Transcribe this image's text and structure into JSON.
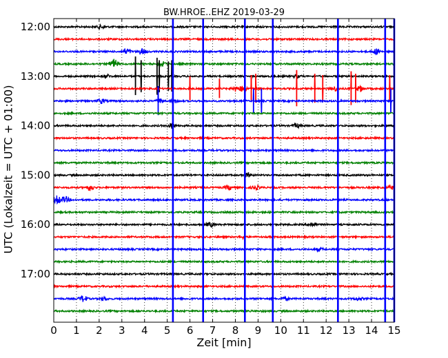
{
  "chart_data": {
    "type": "line",
    "title": "BW.HROE..EHZ 2019-03-29",
    "xlabel": "Zeit  [min]",
    "ylabel": "UTC (Lokalzeit = UTC + 01:00)",
    "xlim": [
      0,
      15
    ],
    "x_ticks": [
      "0",
      "1",
      "2",
      "3",
      "4",
      "5",
      "6",
      "7",
      "8",
      "9",
      "10",
      "11",
      "12",
      "13",
      "14",
      "15"
    ],
    "y_ticks": [
      {
        "label": "12:00",
        "row": 0
      },
      {
        "label": "13:00",
        "row": 4
      },
      {
        "label": "14:00",
        "row": 8
      },
      {
        "label": "15:00",
        "row": 12
      },
      {
        "label": "16:00",
        "row": 16
      },
      {
        "label": "17:00",
        "row": 20
      }
    ],
    "row_minutes": 15,
    "start_time": "12:00",
    "trace_colors": [
      "#000000",
      "#ff0000",
      "#0000ff",
      "#008000"
    ],
    "grid": true,
    "event_markers_min": [
      5.25,
      6.58,
      8.42,
      9.65,
      12.52,
      14.6,
      15.0
    ],
    "marker_color": "#0000ff",
    "traces": [
      {
        "time": "12:00",
        "color": "#000000",
        "bursts": [
          [
            2.1,
            0.6
          ]
        ]
      },
      {
        "time": "12:15",
        "color": "#ff0000",
        "bursts": []
      },
      {
        "time": "12:30",
        "color": "#0000ff",
        "bursts": [
          [
            3.2,
            1.2
          ],
          [
            3.9,
            1.0
          ],
          [
            14.2,
            1.0
          ]
        ]
      },
      {
        "time": "12:45",
        "color": "#008000",
        "bursts": [
          [
            2.65,
            1.8
          ],
          [
            4.8,
            0.8
          ]
        ]
      },
      {
        "time": "13:00",
        "color": "#000000",
        "bursts": [
          [
            2.35,
            0.6
          ],
          [
            10.7,
            0.5
          ]
        ]
      },
      {
        "time": "13:15",
        "color": "#ff0000",
        "bursts": [
          [
            8.0,
            0.8
          ],
          [
            8.35,
            1.2
          ],
          [
            13.5,
            1.0
          ],
          [
            12.4,
            0.7
          ]
        ]
      },
      {
        "time": "13:30",
        "color": "#0000ff",
        "bursts": [
          [
            2.1,
            0.9
          ],
          [
            4.7,
            0.8
          ],
          [
            5.3,
            0.7
          ]
        ]
      },
      {
        "time": "13:45",
        "color": "#008000",
        "bursts": []
      },
      {
        "time": "14:00",
        "color": "#000000",
        "bursts": [
          [
            5.2,
            1.0
          ],
          [
            10.7,
            0.8
          ]
        ]
      },
      {
        "time": "14:15",
        "color": "#ff0000",
        "bursts": []
      },
      {
        "time": "14:30",
        "color": "#0000ff",
        "bursts": []
      },
      {
        "time": "14:45",
        "color": "#008000",
        "bursts": []
      },
      {
        "time": "15:00",
        "color": "#000000",
        "bursts": [
          [
            8.55,
            0.7
          ]
        ]
      },
      {
        "time": "15:15",
        "color": "#ff0000",
        "bursts": [
          [
            1.6,
            1.0
          ],
          [
            7.7,
            0.9
          ],
          [
            8.9,
            0.7
          ],
          [
            14.9,
            0.6
          ]
        ]
      },
      {
        "time": "15:30",
        "color": "#0000ff",
        "bursts": [
          [
            0.15,
            1.5
          ],
          [
            0.5,
            1.2
          ]
        ]
      },
      {
        "time": "15:45",
        "color": "#008000",
        "bursts": []
      },
      {
        "time": "16:00",
        "color": "#000000",
        "bursts": [
          [
            6.9,
            0.8
          ],
          [
            11.4,
            0.8
          ]
        ]
      },
      {
        "time": "16:15",
        "color": "#ff0000",
        "bursts": [
          [
            8.3,
            0.5
          ]
        ]
      },
      {
        "time": "16:30",
        "color": "#0000ff",
        "bursts": [
          [
            11.7,
            0.5
          ]
        ]
      },
      {
        "time": "16:45",
        "color": "#008000",
        "bursts": []
      },
      {
        "time": "17:00",
        "color": "#000000",
        "bursts": []
      },
      {
        "time": "17:15",
        "color": "#ff0000",
        "bursts": []
      },
      {
        "time": "17:30",
        "color": "#0000ff",
        "bursts": [
          [
            1.3,
            1.2
          ],
          [
            2.2,
            0.6
          ],
          [
            10.2,
            0.5
          ],
          [
            13.4,
            0.6
          ]
        ]
      },
      {
        "time": "17:45",
        "color": "#008000",
        "bursts": []
      }
    ],
    "spikes": [
      {
        "row": 4,
        "t": 3.6,
        "amp": 1.6
      },
      {
        "row": 4,
        "t": 3.85,
        "amp": 1.3
      },
      {
        "row": 4,
        "t": 4.55,
        "amp": 1.5
      },
      {
        "row": 4,
        "t": 4.65,
        "amp": 1.3
      },
      {
        "row": 4,
        "t": 5.05,
        "amp": 1.2
      },
      {
        "row": 4,
        "t": 5.2,
        "amp": 1.3
      },
      {
        "row": 5,
        "t": 6.0,
        "amp": 1.0
      },
      {
        "row": 5,
        "t": 7.3,
        "amp": 0.8
      },
      {
        "row": 5,
        "t": 8.7,
        "amp": 1.1
      },
      {
        "row": 5,
        "t": 8.9,
        "amp": 1.2
      },
      {
        "row": 5,
        "t": 10.7,
        "amp": 1.5
      },
      {
        "row": 5,
        "t": 11.5,
        "amp": 1.2
      },
      {
        "row": 5,
        "t": 11.85,
        "amp": 1.1
      },
      {
        "row": 5,
        "t": 13.1,
        "amp": 1.4
      },
      {
        "row": 5,
        "t": 13.3,
        "amp": 1.2
      },
      {
        "row": 5,
        "t": 14.8,
        "amp": 1.1
      },
      {
        "row": 6,
        "t": 4.6,
        "amp": 1.2
      },
      {
        "row": 6,
        "t": 8.8,
        "amp": 1.0
      },
      {
        "row": 6,
        "t": 9.15,
        "amp": 1.0
      },
      {
        "row": 6,
        "t": 14.85,
        "amp": 1.0
      }
    ]
  }
}
